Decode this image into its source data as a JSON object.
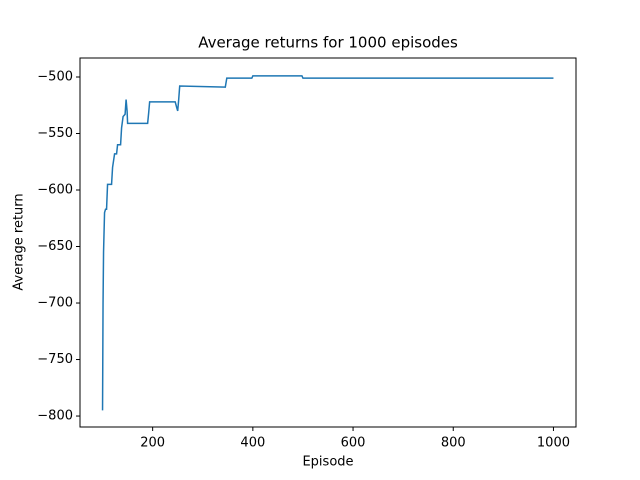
{
  "chart_data": {
    "type": "line",
    "title": "Average returns for 1000 episodes",
    "x_label": "Episode",
    "y_label": "Average return",
    "x": [
      100,
      101,
      102,
      104,
      106,
      108,
      110,
      118,
      120,
      124,
      128,
      130,
      136,
      138,
      141,
      145,
      147,
      149,
      150,
      190,
      192,
      194,
      245,
      248,
      250,
      252,
      254,
      345,
      348,
      398,
      400,
      498,
      500,
      1000
    ],
    "series": [
      {
        "name": "Average return",
        "color": "#1f77b4",
        "values": [
          -795,
          -700,
          -655,
          -620,
          -617,
          -617,
          -595,
          -595,
          -580,
          -568,
          -568,
          -560,
          -560,
          -545,
          -535,
          -533,
          -520,
          -530,
          -541,
          -541,
          -532,
          -522,
          -522,
          -527,
          -530,
          -520,
          -508,
          -509,
          -501,
          -501,
          -499,
          -499,
          -501,
          -501
        ]
      }
    ],
    "xlim": [
      55,
      1045
    ],
    "ylim": [
      -809.7,
      -483.2
    ],
    "xticks": [
      200,
      400,
      600,
      800,
      1000
    ],
    "yticks": [
      {
        "value": -800,
        "label": "−800"
      },
      {
        "value": -750,
        "label": "−750"
      },
      {
        "value": -700,
        "label": "−700"
      },
      {
        "value": -650,
        "label": "−650"
      },
      {
        "value": -600,
        "label": "−600"
      },
      {
        "value": -550,
        "label": "−550"
      },
      {
        "value": -500,
        "label": "−500"
      }
    ]
  }
}
